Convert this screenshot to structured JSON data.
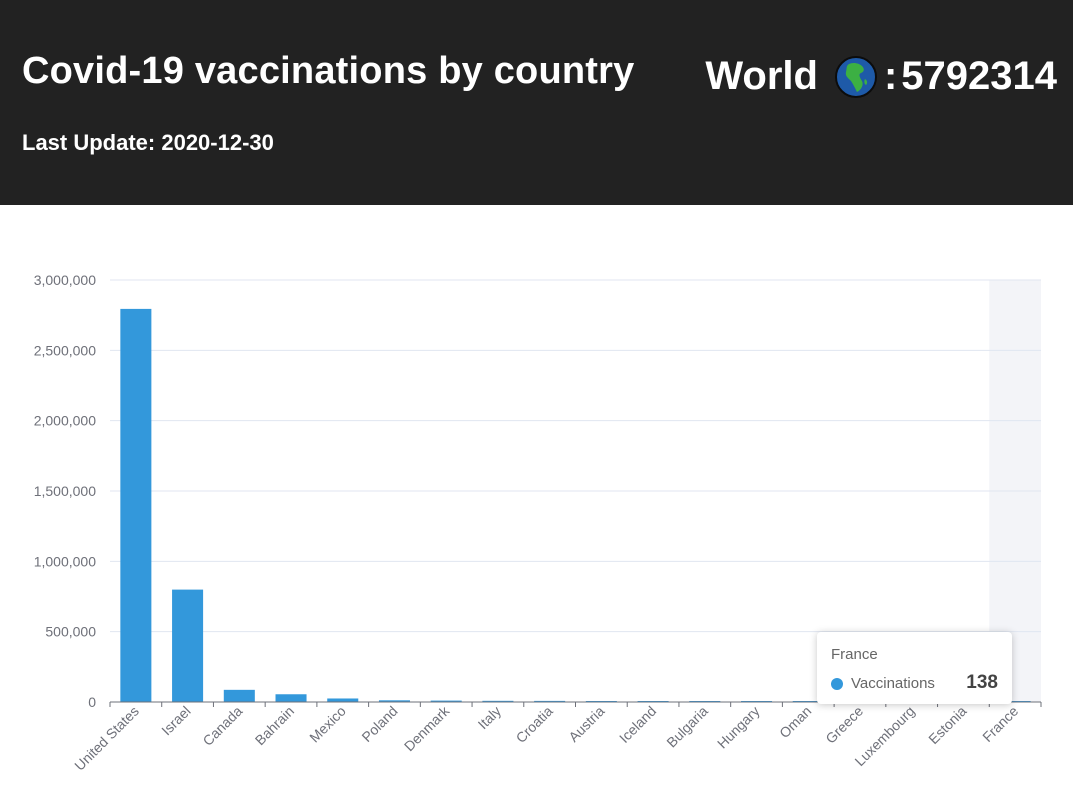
{
  "header": {
    "title": "Covid-19 vaccinations by country",
    "last_update": "Last Update: 2020-12-30",
    "world_label": "World",
    "world_separator": ":",
    "world_total": "5792314",
    "globe_icon": "globe-africa-icon"
  },
  "colors": {
    "header_bg": "#222222",
    "bar": "#3398DB",
    "hover_band": "#f3f4f8",
    "grid": "#e0e6f1",
    "axis": "#6e7079"
  },
  "chart_data": {
    "type": "bar",
    "categories": [
      "United States",
      "Israel",
      "Canada",
      "Bahrain",
      "Mexico",
      "Poland",
      "Denmark",
      "Italy",
      "Croatia",
      "Austria",
      "Iceland",
      "Bulgaria",
      "Hungary",
      "Oman",
      "Greece",
      "Luxembourg",
      "Estonia",
      "France"
    ],
    "series": [
      {
        "name": "Vaccinations",
        "values": [
          2794588,
          799000,
          86433,
          55000,
          25000,
          12000,
          10000,
          8361,
          7864,
          5000,
          4800,
          4500,
          4200,
          4000,
          2000,
          900,
          500,
          138
        ]
      }
    ],
    "yticks": [
      "0",
      "500,000",
      "1,000,000",
      "1,500,000",
      "2,000,000",
      "2,500,000",
      "3,000,000"
    ],
    "ylim": [
      0,
      3000000
    ],
    "grid": true,
    "highlighted_category": "France"
  },
  "tooltip": {
    "title": "France",
    "series_name": "Vaccinations",
    "value": "138"
  }
}
